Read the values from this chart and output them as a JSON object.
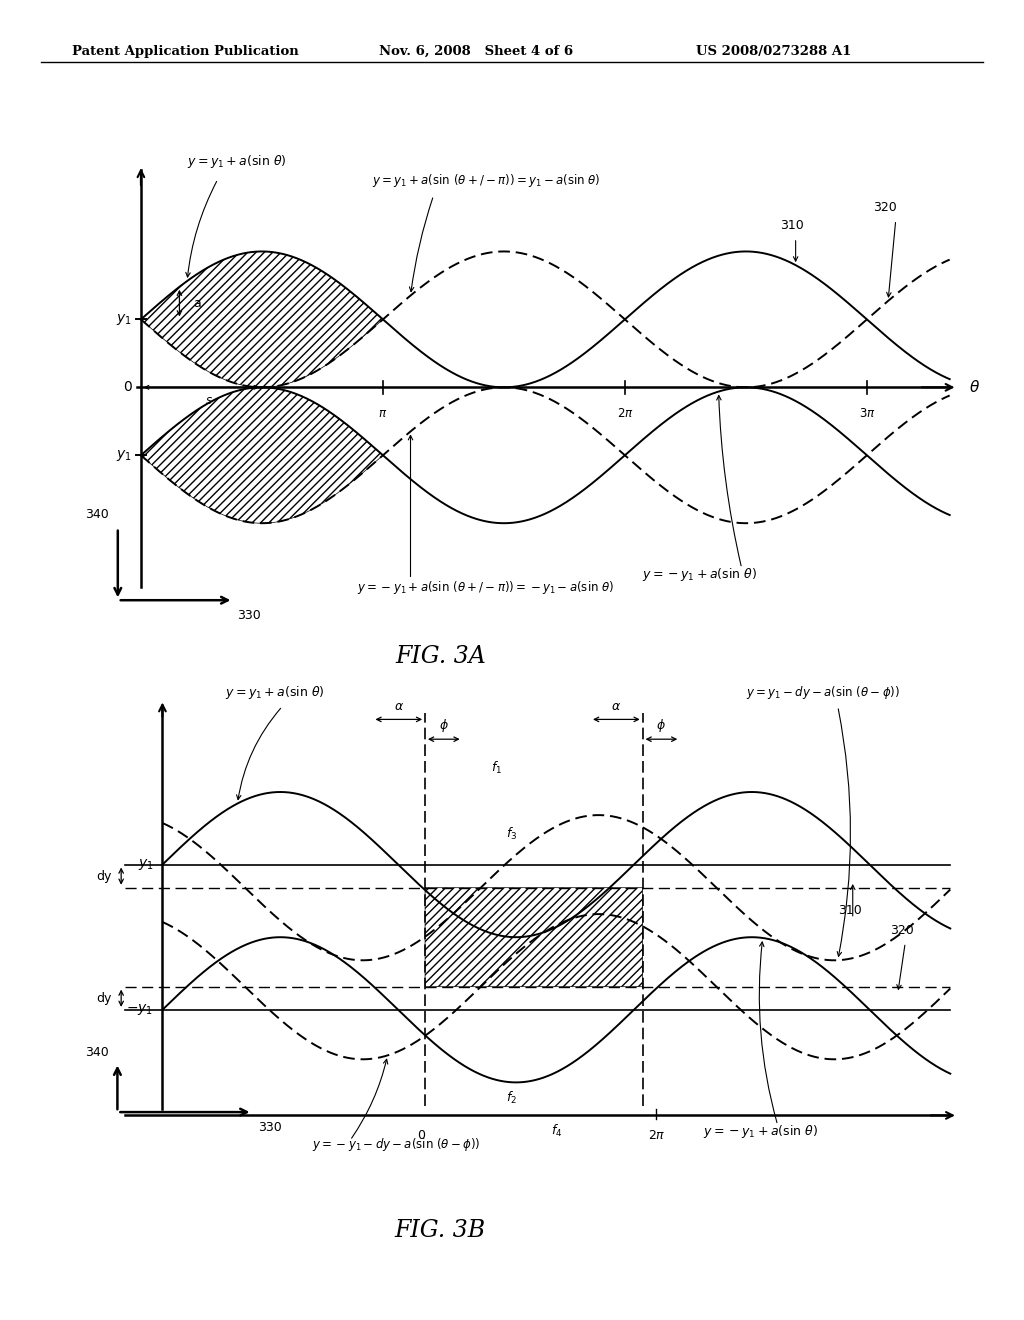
{
  "header_left": "Patent Application Publication",
  "header_mid": "Nov. 6, 2008   Sheet 4 of 6",
  "header_right": "US 2008/0273288 A1",
  "fig_label_3a": "FIG. 3A",
  "fig_label_3b": "FIG. 3B",
  "bg_color": "#ffffff",
  "line_color": "#000000"
}
